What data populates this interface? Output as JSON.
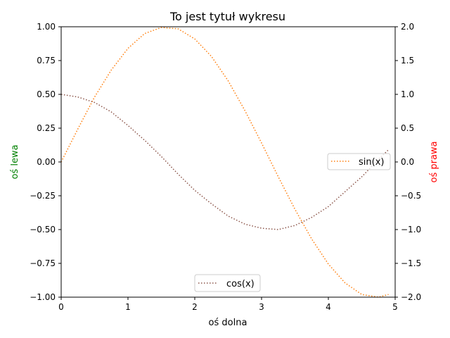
{
  "chart_data": {
    "type": "line",
    "title": "To jest tytuł wykresu",
    "xlabel": "oś dolna",
    "ylabel_left": "oś lewa",
    "ylabel_right": "oś prawa",
    "xlim": [
      0,
      5
    ],
    "ylim_left": [
      -1,
      1
    ],
    "ylim_right": [
      -2,
      2
    ],
    "x_ticks": [
      "0",
      "1",
      "2",
      "3",
      "4",
      "5"
    ],
    "y_ticks_left": [
      "−1.00",
      "−0.75",
      "−0.50",
      "−0.25",
      "0.00",
      "0.25",
      "0.50",
      "0.75",
      "1.00"
    ],
    "y_ticks_right": [
      "−2.0",
      "−1.5",
      "−1.0",
      "−0.5",
      "0.0",
      "0.5",
      "1.0",
      "1.5",
      "2.0"
    ],
    "grid": false,
    "series": [
      {
        "name": "sin(x)",
        "axis": "right",
        "color": "#ff7f0e",
        "style": "dotted",
        "x": [
          0,
          0.25,
          0.5,
          0.75,
          1.0,
          1.25,
          1.5,
          1.75,
          2.0,
          2.25,
          2.5,
          2.75,
          3.0,
          3.25,
          3.5,
          3.75,
          4.0,
          4.25,
          4.5,
          4.75,
          4.9
        ],
        "y": [
          0,
          0.49,
          0.96,
          1.36,
          1.68,
          1.9,
          1.99,
          1.97,
          1.82,
          1.56,
          1.2,
          0.76,
          0.28,
          -0.22,
          -0.7,
          -1.14,
          -1.51,
          -1.79,
          -1.96,
          -2.0,
          -1.96
        ]
      },
      {
        "name": "cos(x)",
        "axis": "left",
        "color": "#8c564b",
        "style": "dotted",
        "x": [
          0,
          0.25,
          0.5,
          0.75,
          1.0,
          1.25,
          1.5,
          1.75,
          2.0,
          2.25,
          2.5,
          2.75,
          3.0,
          3.25,
          3.5,
          3.75,
          4.0,
          4.25,
          4.5,
          4.75,
          4.9
        ],
        "y": [
          0.5,
          0.48,
          0.44,
          0.37,
          0.27,
          0.16,
          0.04,
          -0.09,
          -0.21,
          -0.31,
          -0.4,
          -0.46,
          -0.49,
          -0.5,
          -0.47,
          -0.41,
          -0.33,
          -0.22,
          -0.11,
          0.02,
          0.09
        ]
      }
    ],
    "legends": [
      {
        "series": "sin(x)",
        "placement": "center-right"
      },
      {
        "series": "cos(x)",
        "placement": "lower-center"
      }
    ],
    "label_colors": {
      "left": "#008000",
      "right": "#ff0000"
    }
  }
}
